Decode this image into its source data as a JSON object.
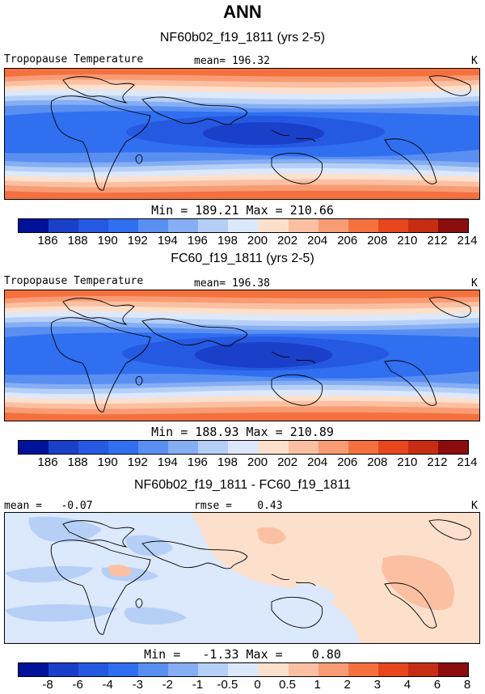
{
  "header": {
    "title": "ANN"
  },
  "units": "K",
  "field_name": "Tropopause Temperature",
  "panels": [
    {
      "title": "NF60b02_f19_1811 (yrs 2-5)",
      "mean_text": "mean= 196.32",
      "min_max_text": "Min = 189.21 Max = 210.66"
    },
    {
      "title": "FC60_f19_1811 (yrs 2-5)",
      "mean_text": "mean= 196.38",
      "min_max_text": "Min = 188.93 Max = 210.89"
    },
    {
      "title": "NF60b02_f19_1811 - FC60_f19_1811",
      "mean_text": "mean =   -0.07",
      "rmse_text": "rmse =    0.43",
      "min_max_text": "Min =   -1.33 Max =    0.80"
    }
  ],
  "colorbar_abs": {
    "ticks": [
      "186",
      "188",
      "190",
      "192",
      "194",
      "196",
      "198",
      "200",
      "202",
      "204",
      "206",
      "208",
      "210",
      "212",
      "214"
    ],
    "colors": [
      "#00129a",
      "#1a3fc8",
      "#2559e2",
      "#2f6ff0",
      "#5a8ff2",
      "#86aef3",
      "#b5cff7",
      "#dce8fb",
      "#fde0cc",
      "#fbc0a2",
      "#f89c74",
      "#f4713f",
      "#e8461d",
      "#c72d13",
      "#8b0d0d"
    ]
  },
  "colorbar_diff": {
    "ticks": [
      "-8",
      "-6",
      "-4",
      "-3",
      "-2",
      "-1",
      "-0.5",
      "0",
      "0.5",
      "1",
      "2",
      "3",
      "4",
      "6",
      "8"
    ],
    "colors": [
      "#00129a",
      "#1a3fc8",
      "#2559e2",
      "#2f6ff0",
      "#5a8ff2",
      "#86aef3",
      "#b5cff7",
      "#dce8fb",
      "#fde0cc",
      "#fbc0a2",
      "#f89c74",
      "#f4713f",
      "#e8461d",
      "#c72d13",
      "#8b0d0d"
    ]
  }
}
